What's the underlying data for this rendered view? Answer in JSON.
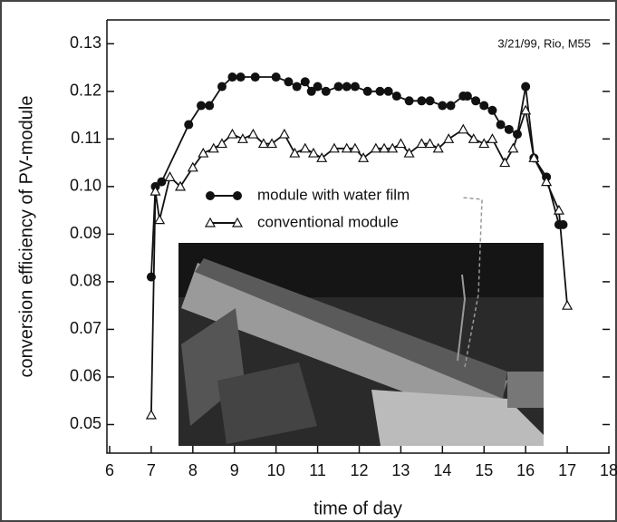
{
  "chart_data": {
    "type": "line",
    "annotation": "3/21/99, Rio, M55",
    "x_label": "time of day",
    "y_label": "conversion efficiency of PV-module",
    "xlim": [
      6,
      18
    ],
    "xticks": [
      6,
      7,
      8,
      9,
      10,
      11,
      12,
      13,
      14,
      15,
      16,
      17,
      18
    ],
    "ylim": [
      0.044,
      0.135
    ],
    "yticks": [
      0.05,
      0.06,
      0.07,
      0.08,
      0.09,
      {
        "value": 0.1,
        "label": "0.10"
      },
      0.11,
      0.12,
      0.13
    ],
    "series": [
      {
        "name": "module with water film",
        "color": "#111111",
        "marker": "circle",
        "x": [
          7.0,
          7.1,
          7.25,
          7.9,
          8.2,
          8.4,
          8.7,
          8.95,
          9.15,
          9.5,
          10.0,
          10.3,
          10.5,
          10.7,
          10.85,
          11.0,
          11.2,
          11.5,
          11.7,
          11.9,
          12.2,
          12.5,
          12.7,
          12.9,
          13.2,
          13.5,
          13.7,
          14.0,
          14.2,
          14.5,
          14.6,
          14.8,
          15.0,
          15.2,
          15.4,
          15.6,
          15.8,
          16.0,
          16.2,
          16.5,
          16.8,
          16.9
        ],
        "values": [
          0.081,
          0.1,
          0.101,
          0.113,
          0.117,
          0.117,
          0.121,
          0.123,
          0.123,
          0.123,
          0.123,
          0.122,
          0.121,
          0.122,
          0.12,
          0.121,
          0.12,
          0.121,
          0.121,
          0.121,
          0.12,
          0.12,
          0.12,
          0.119,
          0.118,
          0.118,
          0.118,
          0.117,
          0.117,
          0.119,
          0.119,
          0.118,
          0.117,
          0.116,
          0.113,
          0.112,
          0.111,
          0.121,
          0.106,
          0.102,
          0.092,
          0.092
        ]
      },
      {
        "name": "conventional module",
        "color": "#111111",
        "marker": "triangle",
        "x": [
          7.0,
          7.1,
          7.2,
          7.45,
          7.7,
          8.0,
          8.25,
          8.5,
          8.7,
          8.95,
          9.2,
          9.45,
          9.7,
          9.9,
          10.2,
          10.45,
          10.7,
          10.9,
          11.1,
          11.4,
          11.7,
          11.9,
          12.1,
          12.4,
          12.6,
          12.8,
          13.0,
          13.2,
          13.5,
          13.7,
          13.9,
          14.15,
          14.5,
          14.75,
          15.0,
          15.2,
          15.5,
          15.7,
          16.0,
          16.2,
          16.5,
          16.8,
          17.0
        ],
        "values": [
          0.052,
          0.099,
          0.093,
          0.102,
          0.1,
          0.104,
          0.107,
          0.108,
          0.109,
          0.111,
          0.11,
          0.111,
          0.109,
          0.109,
          0.111,
          0.107,
          0.108,
          0.107,
          0.106,
          0.108,
          0.108,
          0.108,
          0.106,
          0.108,
          0.108,
          0.108,
          0.109,
          0.107,
          0.109,
          0.109,
          0.108,
          0.11,
          0.112,
          0.11,
          0.109,
          0.11,
          0.105,
          0.108,
          0.116,
          0.106,
          0.101,
          0.095,
          0.075
        ]
      }
    ]
  }
}
